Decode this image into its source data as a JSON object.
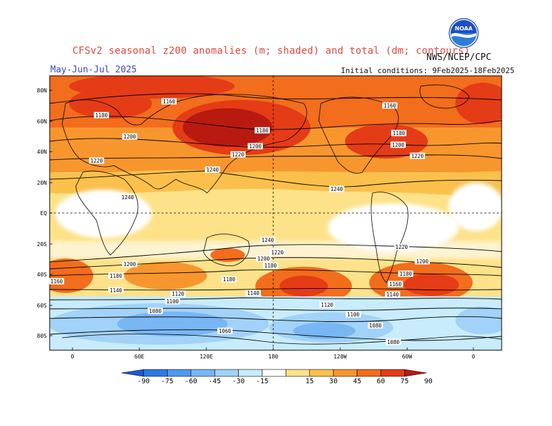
{
  "header": {
    "title": "CFSv2 seasonal z200 anomalies (m; shaded) and total (dm; contours)",
    "org": "NWS/NCEP/CPC",
    "season": "May-Jun-Jul 2025",
    "initial_conditions": "Initial conditions: 9Feb2025-18Feb2025",
    "logo_text": "NOAA"
  },
  "map": {
    "lat_labels": [
      "80N",
      "60N",
      "40N",
      "20N",
      "EQ",
      "20S",
      "40S",
      "60S",
      "80S"
    ],
    "lon_labels": [
      "0",
      "60E",
      "120E",
      "180",
      "120W",
      "60W",
      "0"
    ],
    "contour_labels": [
      "1160",
      "1180",
      "1200",
      "1220",
      "1240",
      "1160",
      "1180",
      "1200",
      "1220",
      "1180",
      "1180",
      "1200",
      "1220",
      "1240",
      "1240",
      "1240",
      "1220",
      "1220",
      "1200",
      "1200",
      "1200",
      "1180",
      "1180",
      "1160",
      "1180",
      "1180",
      "1140",
      "1140",
      "1120",
      "1100",
      "1160",
      "1140",
      "1120",
      "1100",
      "1080",
      "1080",
      "1060",
      "1080"
    ]
  },
  "colorbar": {
    "ticks": [
      "-90",
      "-75",
      "-60",
      "-45",
      "-30",
      "-15",
      "15",
      "30",
      "45",
      "60",
      "75",
      "90"
    ],
    "colors": [
      "#1a5ad8",
      "#2d7ae8",
      "#4f98f0",
      "#78b6f4",
      "#a2d2f8",
      "#c8ecfc",
      "#ffffff",
      "#fde28a",
      "#fbc04c",
      "#f8962e",
      "#f26d1c",
      "#e43c16",
      "#b81a10"
    ]
  }
}
